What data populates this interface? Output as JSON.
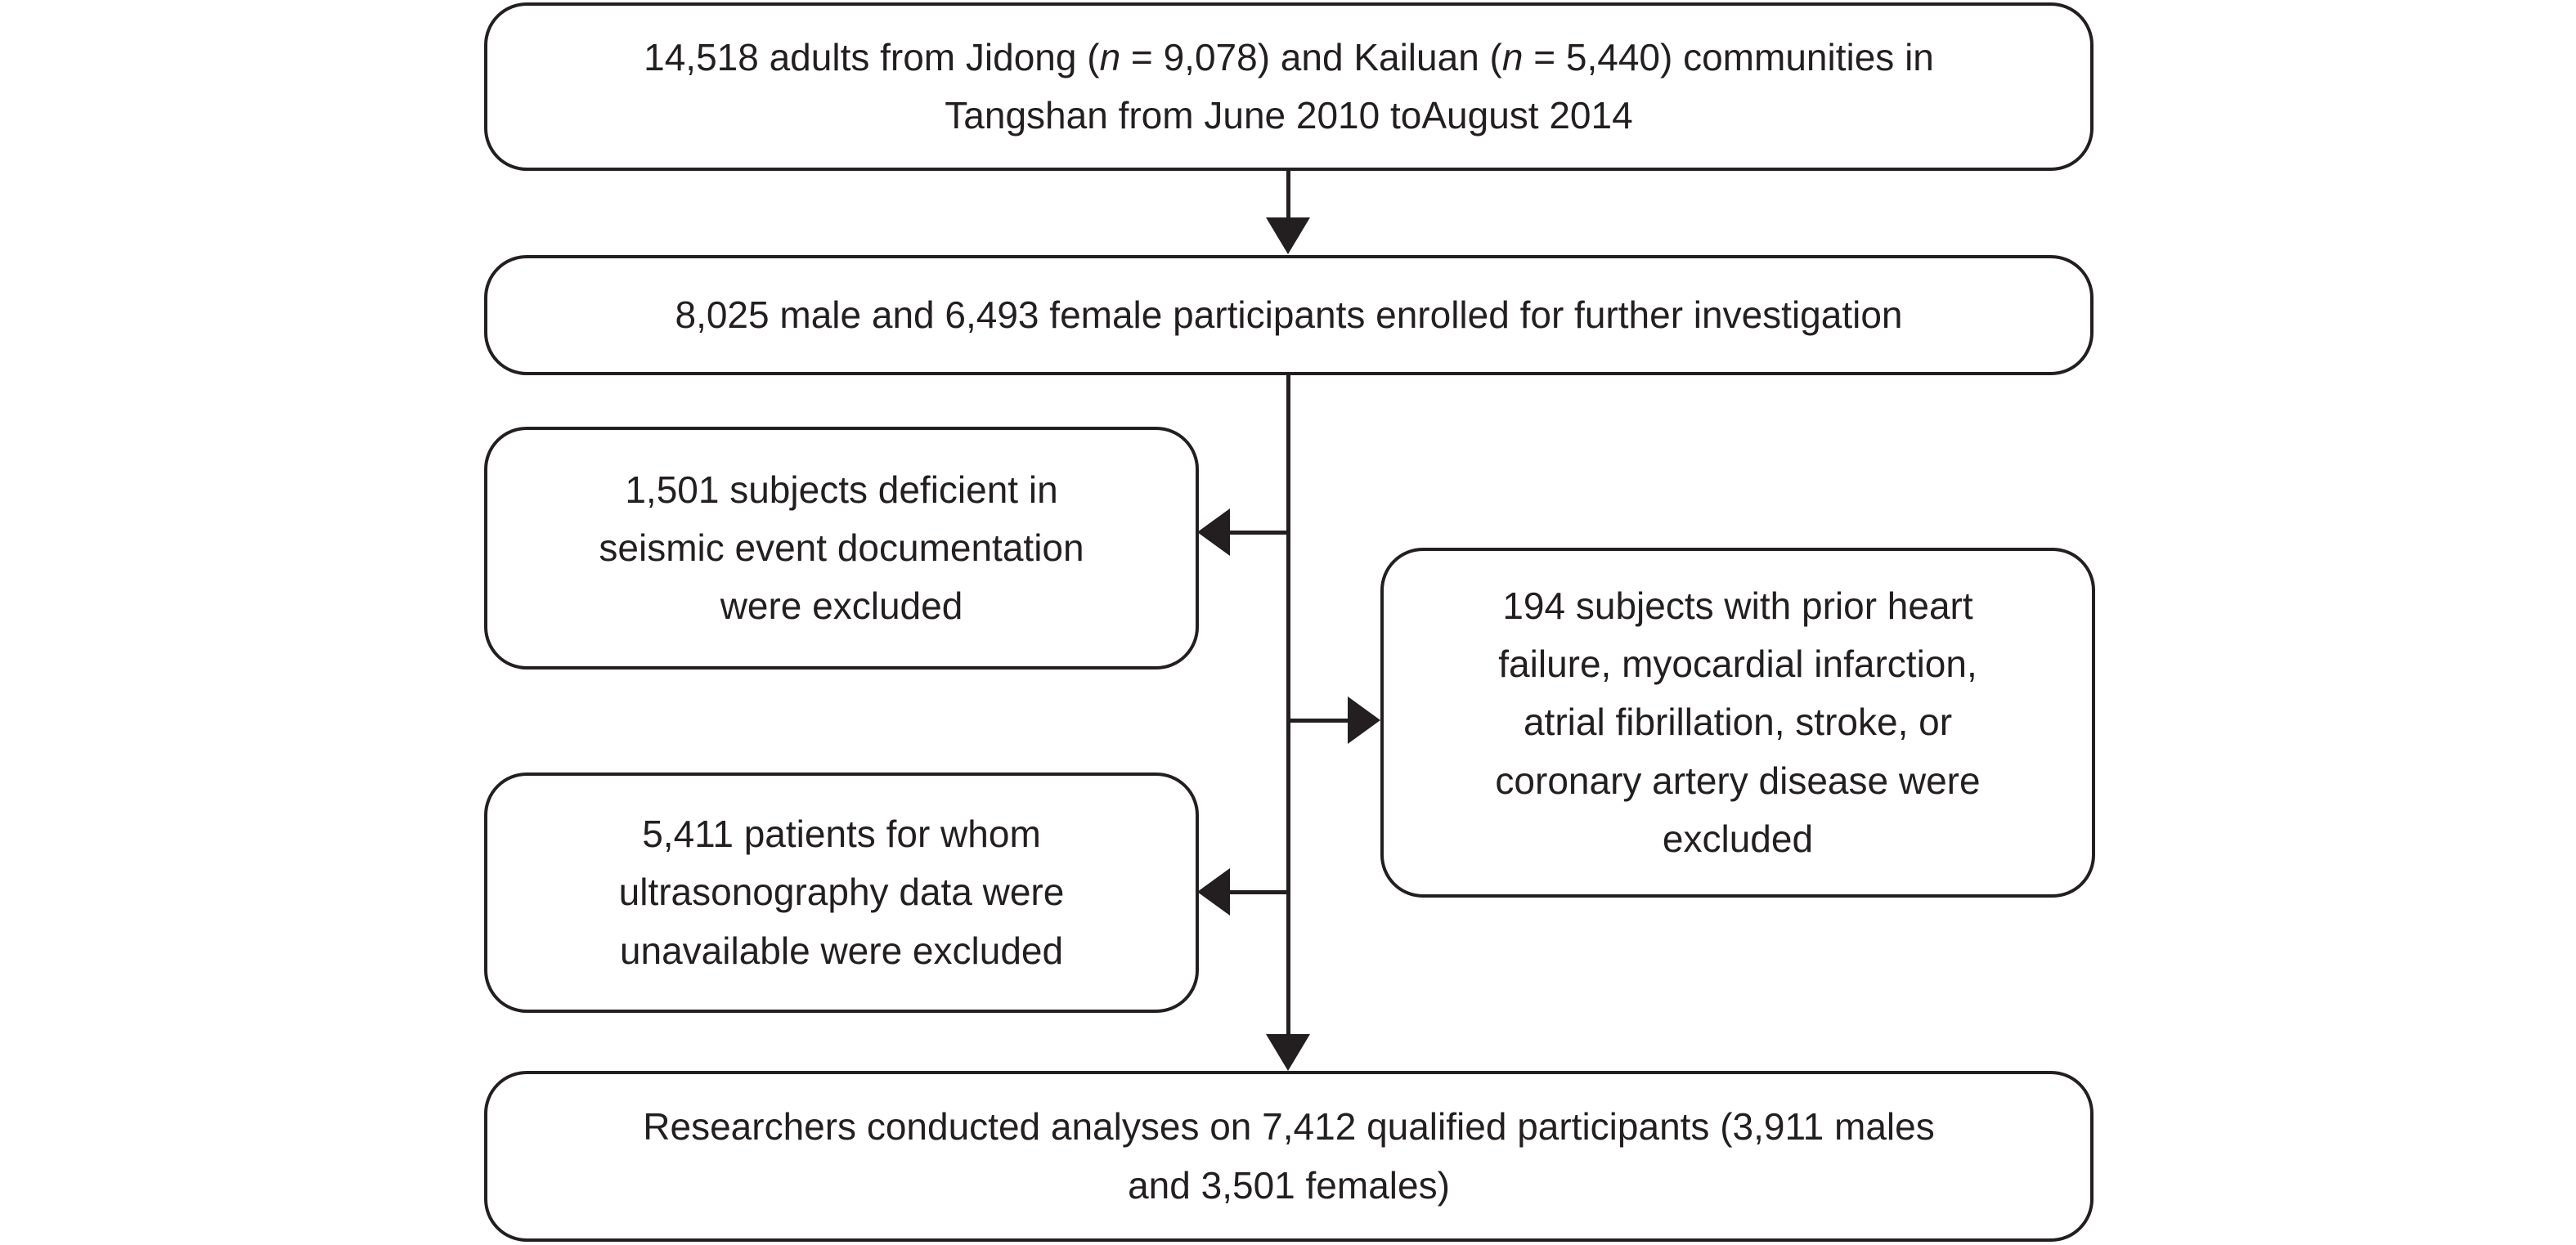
{
  "colors": {
    "ink": "#231f20",
    "box_fill": "#ffffff",
    "background": "#ffffff"
  },
  "flowchart": {
    "initial": {
      "seg1": "14,518 adults from Jidong (",
      "n1": "n",
      "seg2": " = 9,078) and Kailuan (",
      "n2": "n",
      "seg3": " = 5,440) communities in",
      "line2": "Tangshan from June 2010 toAugust 2014"
    },
    "enrolled": {
      "line1": "8,025 male and 6,493 female participants enrolled for further investigation"
    },
    "excluded_seismic": {
      "lines": [
        "1,501 subjects deficient in",
        "seismic event documentation",
        "were excluded"
      ]
    },
    "excluded_cardiac": {
      "lines": [
        "194 subjects with prior heart",
        "failure, myocardial infarction,",
        "atrial fibrillation, stroke, or",
        "coronary artery disease were",
        "excluded"
      ]
    },
    "excluded_ultrasound": {
      "lines": [
        "5,411 patients for whom",
        "ultrasonography data were",
        "unavailable were excluded"
      ]
    },
    "final": {
      "lines": [
        "Researchers conducted analyses on 7,412 qualified participants (3,911 males",
        "and 3,501 females)"
      ]
    }
  }
}
